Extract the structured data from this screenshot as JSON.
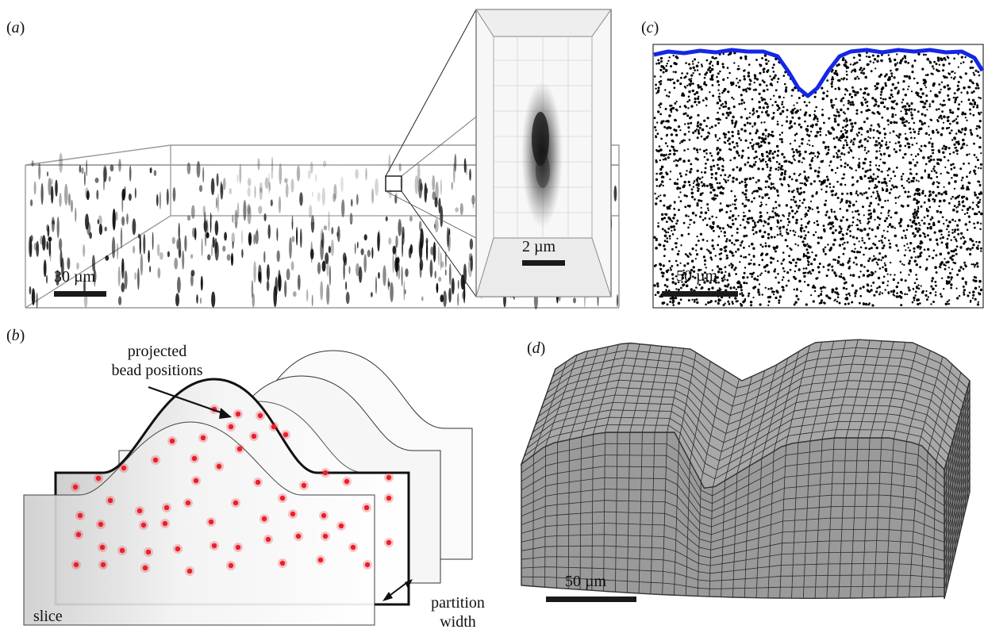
{
  "panels": {
    "a": {
      "label_open": "(",
      "letter": "a",
      "label_close": ")",
      "scale_main": "30 µm",
      "scale_zoom": "2 µm"
    },
    "b": {
      "label_open": "(",
      "letter": "b",
      "label_close": ")",
      "annot_projected_1": "projected",
      "annot_projected_2": "bead positions",
      "annot_slice": "slice",
      "annot_partition_1": "partition",
      "annot_partition_2": "width"
    },
    "c": {
      "label_open": "(",
      "letter": "c",
      "label_close": ")",
      "scale": "50 µm",
      "surface_color": "#1426e6"
    },
    "d": {
      "label_open": "(",
      "letter": "d",
      "label_close": ")",
      "scale": "50 µm",
      "mesh_fill": "#9a9a9a"
    }
  },
  "colors": {
    "bead": "#e8202a",
    "surface_line": "#1426e6",
    "mesh": "#9a9a9a"
  }
}
